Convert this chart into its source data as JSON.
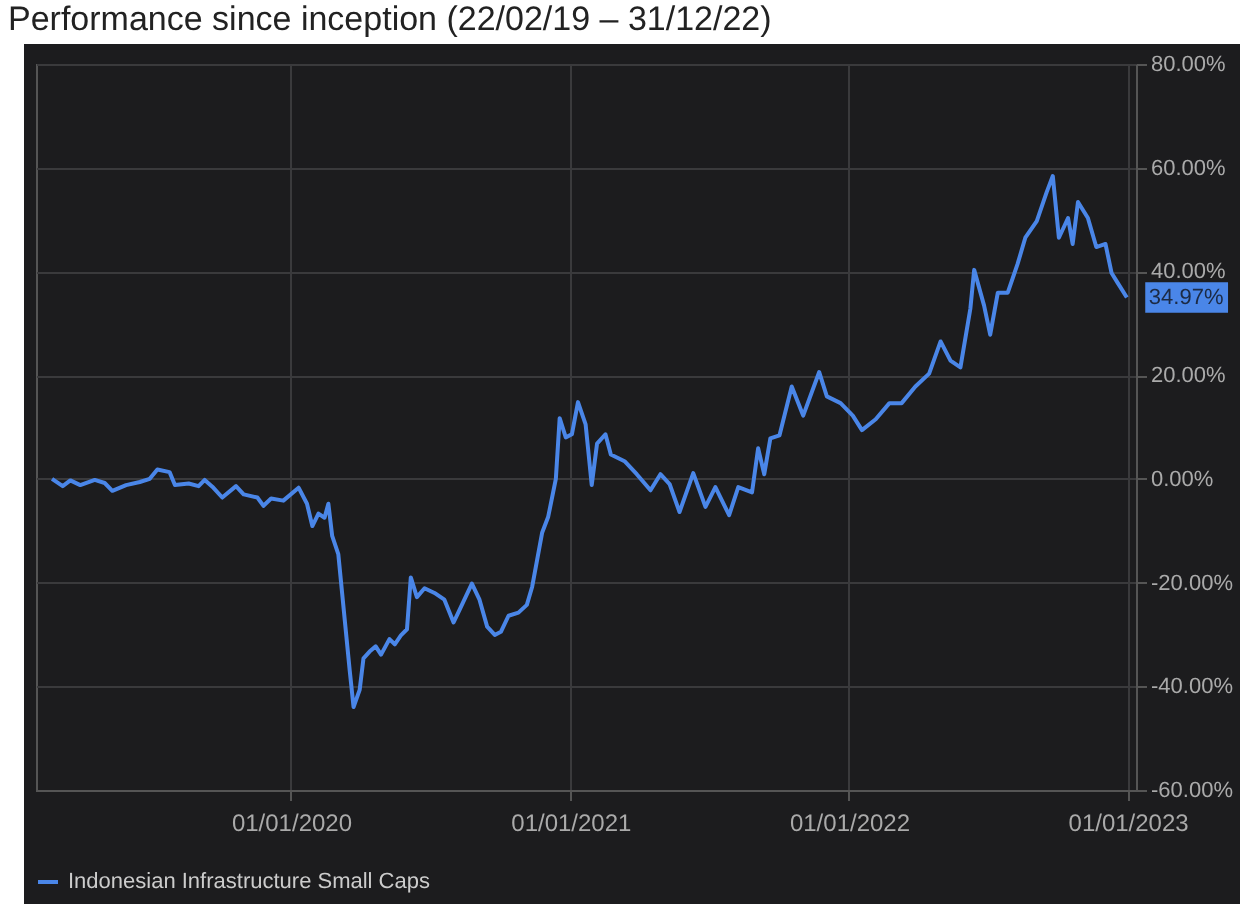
{
  "chart_data": {
    "type": "line",
    "title": "Performance since inception (22/02/19 – 31/12/22)",
    "xlim": [
      "2019-02-01",
      "2023-01-12"
    ],
    "xticks": [
      {
        "value": "2020-01-01",
        "label": "01/01/2020"
      },
      {
        "value": "2021-01-01",
        "label": "01/01/2021"
      },
      {
        "value": "2022-01-01",
        "label": "01/01/2022"
      },
      {
        "value": "2023-01-01",
        "label": "01/01/2023"
      }
    ],
    "ylim": [
      -60,
      80
    ],
    "yticks": [
      {
        "value": -60,
        "label": "-60.00%"
      },
      {
        "value": -40,
        "label": "-40.00%"
      },
      {
        "value": -20,
        "label": "-20.00%"
      },
      {
        "value": 0,
        "label": "0.00%"
      },
      {
        "value": 20,
        "label": "20.00%"
      },
      {
        "value": 40,
        "label": "40.00%"
      },
      {
        "value": 60,
        "label": "60.00%"
      },
      {
        "value": 80,
        "label": "80.00%"
      }
    ],
    "grid": true,
    "legend": "bottom",
    "annotations": [
      {
        "text": "34.97%",
        "x": "2022-12-31",
        "y": 34.97
      }
    ],
    "x": [
      "2019-02-22",
      "2019-03-08",
      "2019-03-18",
      "2019-03-31",
      "2019-04-19",
      "2019-05-02",
      "2019-05-12",
      "2019-05-30",
      "2019-06-17",
      "2019-06-30",
      "2019-07-10",
      "2019-07-26",
      "2019-08-02",
      "2019-08-20",
      "2019-09-02",
      "2019-09-10",
      "2019-09-20",
      "2019-10-03",
      "2019-10-21",
      "2019-10-31",
      "2019-11-18",
      "2019-11-26",
      "2019-12-06",
      "2019-12-22",
      "2020-01-11",
      "2020-01-22",
      "2020-01-29",
      "2020-02-06",
      "2020-02-14",
      "2020-02-19",
      "2020-02-24",
      "2020-03-03",
      "2020-03-08",
      "2020-03-18",
      "2020-03-23",
      "2020-03-31",
      "2020-04-05",
      "2020-04-13",
      "2020-04-21",
      "2020-04-28",
      "2020-05-09",
      "2020-05-16",
      "2020-05-24",
      "2020-06-01",
      "2020-06-06",
      "2020-06-14",
      "2020-06-24",
      "2020-07-07",
      "2020-07-20",
      "2020-08-01",
      "2020-08-09",
      "2020-08-25",
      "2020-09-04",
      "2020-09-14",
      "2020-09-24",
      "2020-10-02",
      "2020-10-12",
      "2020-10-25",
      "2020-11-05",
      "2020-11-12",
      "2020-11-25",
      "2020-12-03",
      "2020-12-13",
      "2020-12-18",
      "2020-12-26",
      "2021-01-03",
      "2021-01-11",
      "2021-01-21",
      "2021-01-29",
      "2021-02-05",
      "2021-02-16",
      "2021-02-23",
      "2021-03-13",
      "2021-03-29",
      "2021-04-16",
      "2021-04-29",
      "2021-05-11",
      "2021-05-24",
      "2021-06-11",
      "2021-06-27",
      "2021-07-10",
      "2021-07-28",
      "2021-08-09",
      "2021-08-27",
      "2021-09-04",
      "2021-09-12",
      "2021-09-20",
      "2021-10-02",
      "2021-10-18",
      "2021-11-02",
      "2021-11-23",
      "2021-12-03",
      "2021-12-21",
      "2022-01-06",
      "2022-01-18",
      "2022-02-05",
      "2022-02-23",
      "2022-03-11",
      "2022-03-29",
      "2022-04-16",
      "2022-05-01",
      "2022-05-14",
      "2022-05-27",
      "2022-06-09",
      "2022-06-14",
      "2022-06-27",
      "2022-07-05",
      "2022-07-15",
      "2022-07-28",
      "2022-08-10",
      "2022-08-20",
      "2022-09-04",
      "2022-09-17",
      "2022-09-25",
      "2022-10-03",
      "2022-10-15",
      "2022-10-21",
      "2022-10-28",
      "2022-11-10",
      "2022-11-21",
      "2022-12-03",
      "2022-12-11",
      "2022-12-19",
      "2022-12-31"
    ],
    "series": [
      {
        "name": "Indonesian Infrastructure Small Caps",
        "color": "#4a86e8",
        "values": [
          0,
          -1.4,
          -0.3,
          -1.2,
          -0.2,
          -0.8,
          -2.3,
          -1.2,
          -0.6,
          0,
          1.8,
          1.3,
          -1.2,
          -0.9,
          -1.4,
          -0.2,
          -1.5,
          -3.6,
          -1.4,
          -3,
          -3.6,
          -5.2,
          -3.8,
          -4.2,
          -1.7,
          -4.8,
          -9.1,
          -6.7,
          -7.5,
          -4.8,
          -11,
          -14.5,
          -22,
          -37,
          -44,
          -40.7,
          -34.6,
          -33.3,
          -32.3,
          -33.9,
          -30.9,
          -31.9,
          -30.2,
          -29,
          -19,
          -22.8,
          -21.1,
          -22,
          -23.3,
          -27.7,
          -25.2,
          -20.2,
          -23.3,
          -28.5,
          -30.1,
          -29.5,
          -26.4,
          -25.8,
          -24.3,
          -20.8,
          -10.4,
          -7.3,
          0,
          11.7,
          8,
          8.6,
          14.8,
          10.5,
          -1.2,
          6.8,
          8.6,
          4.7,
          3.4,
          0.9,
          -2.2,
          0.9,
          -1,
          -6.4,
          1.1,
          -5.4,
          -1.6,
          -7,
          -1.6,
          -2.6,
          5.9,
          0.9,
          7.8,
          8.4,
          17.8,
          12.2,
          20.6,
          15.9,
          14.6,
          12.2,
          9.4,
          11.5,
          14.6,
          14.6,
          17.8,
          20.3,
          26.5,
          22.8,
          21.5,
          32.8,
          40.3,
          33.4,
          27.8,
          35.9,
          35.9,
          41.5,
          46.5,
          49.7,
          55.3,
          58.4,
          46.5,
          50.3,
          45.3,
          53.4,
          50.3,
          44.7,
          45.3,
          39.7,
          37.8,
          34.97
        ]
      }
    ]
  }
}
